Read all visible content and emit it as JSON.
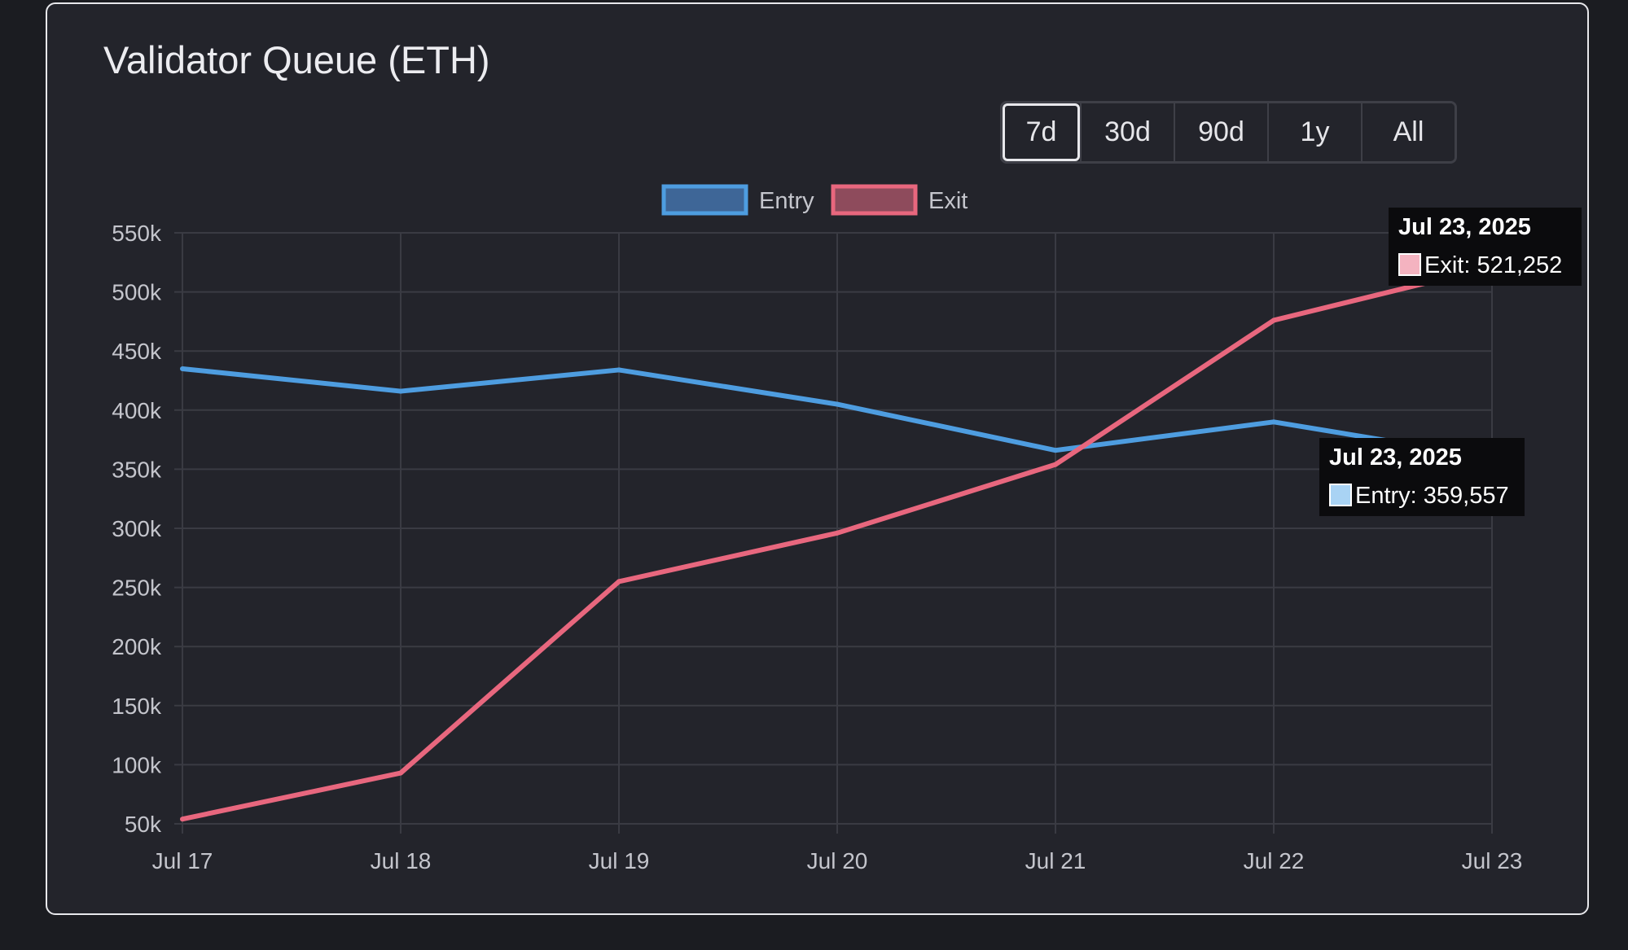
{
  "title": "Validator Queue (ETH)",
  "range_buttons": [
    {
      "label": "7d",
      "active": true
    },
    {
      "label": "30d",
      "active": false
    },
    {
      "label": "90d",
      "active": false
    },
    {
      "label": "1y",
      "active": false
    },
    {
      "label": "All",
      "active": false
    }
  ],
  "colors": {
    "entry": "#4e9de0",
    "exit": "#e8677e",
    "entry_fill": "#3e6697",
    "exit_fill": "#8e4b5c",
    "grid": "#3a3b43"
  },
  "chart_data": {
    "type": "line",
    "title": "Validator Queue (ETH)",
    "categories": [
      "Jul 17",
      "Jul 18",
      "Jul 19",
      "Jul 20",
      "Jul 21",
      "Jul 22",
      "Jul 23"
    ],
    "yticks": [
      "50k",
      "100k",
      "150k",
      "200k",
      "250k",
      "300k",
      "350k",
      "400k",
      "450k",
      "500k",
      "550k"
    ],
    "ylim": [
      50000,
      550000
    ],
    "grid": true,
    "legend_position": "top",
    "series": [
      {
        "name": "Entry",
        "values": [
          435000,
          416000,
          434000,
          405000,
          366000,
          390000,
          359557
        ]
      },
      {
        "name": "Exit",
        "values": [
          54000,
          93000,
          255000,
          296000,
          354000,
          476000,
          521252
        ]
      }
    ]
  },
  "tooltips": [
    {
      "date": "Jul 23, 2025",
      "label": "Exit: 521,252"
    },
    {
      "date": "Jul 23, 2025",
      "label": "Entry: 359,557"
    }
  ]
}
